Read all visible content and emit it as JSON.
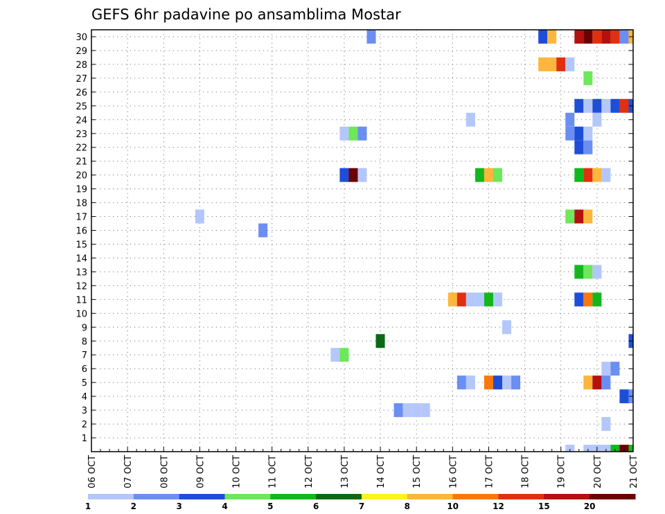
{
  "chart_data": {
    "type": "heatmap",
    "title": "GEFS 6hr padavine po ansamblima Mostar",
    "x_start": "06 OCT 00Z",
    "x_step_hours": 6,
    "x_count": 61,
    "x_tick_labels": [
      "06 OCT",
      "07 OCT",
      "08 OCT",
      "09 OCT",
      "10 OCT",
      "11 OCT",
      "12 OCT",
      "13 OCT",
      "14 OCT",
      "15 OCT",
      "16 OCT",
      "17 OCT",
      "18 OCT",
      "19 OCT",
      "20 OCT",
      "21 OCT"
    ],
    "y_tick_labels": [
      "1",
      "2",
      "3",
      "4",
      "5",
      "6",
      "7",
      "8",
      "9",
      "10",
      "11",
      "12",
      "13",
      "14",
      "15",
      "16",
      "17",
      "18",
      "19",
      "20",
      "21",
      "22",
      "23",
      "24",
      "25",
      "26",
      "27",
      "28",
      "29",
      "30"
    ],
    "y_range": [
      0,
      30
    ],
    "grid": true,
    "colorbar": {
      "colors": [
        "#b4c7fb",
        "#6b8ef2",
        "#1e4ed8",
        "#6ce85a",
        "#13b71c",
        "#0b6a13",
        "#fef41b",
        "#fdb63c",
        "#f9780e",
        "#e0300f",
        "#b41010",
        "#6c0000"
      ],
      "labels": [
        "1",
        "2",
        "3",
        "4",
        "5",
        "6",
        "7",
        "8",
        "10",
        "12",
        "15",
        "20"
      ]
    },
    "cell_value_encoding": "colorbar class index (1-based) of the 6-hour precipitation per member",
    "cells": [
      [
        31,
        30,
        2
      ],
      [
        50,
        30,
        3
      ],
      [
        51,
        30,
        8
      ],
      [
        54,
        30,
        11
      ],
      [
        55,
        30,
        12
      ],
      [
        56,
        30,
        10
      ],
      [
        57,
        30,
        11
      ],
      [
        58,
        30,
        10
      ],
      [
        59,
        30,
        2
      ],
      [
        60,
        30,
        8
      ],
      [
        61,
        30,
        2
      ],
      [
        62,
        30,
        5
      ],
      [
        63,
        30,
        1
      ],
      [
        61,
        29,
        1
      ],
      [
        66,
        29,
        1
      ],
      [
        50,
        28,
        8
      ],
      [
        51,
        28,
        8
      ],
      [
        52,
        28,
        10
      ],
      [
        53,
        28,
        1
      ],
      [
        62,
        28,
        1
      ],
      [
        55,
        27,
        4
      ],
      [
        54,
        25,
        3
      ],
      [
        55,
        25,
        1
      ],
      [
        56,
        25,
        3
      ],
      [
        57,
        25,
        1
      ],
      [
        58,
        25,
        3
      ],
      [
        59,
        25,
        10
      ],
      [
        60,
        25,
        3
      ],
      [
        42,
        24,
        1
      ],
      [
        53,
        24,
        2
      ],
      [
        56,
        24,
        1
      ],
      [
        61,
        24,
        1
      ],
      [
        63,
        24,
        1
      ],
      [
        64,
        24,
        2
      ],
      [
        65,
        24,
        1
      ],
      [
        66,
        24,
        1
      ],
      [
        28,
        23,
        1
      ],
      [
        29,
        23,
        4
      ],
      [
        30,
        23,
        2
      ],
      [
        53,
        23,
        2
      ],
      [
        54,
        23,
        3
      ],
      [
        55,
        23,
        1
      ],
      [
        54,
        22,
        3
      ],
      [
        55,
        22,
        2
      ],
      [
        28,
        20,
        3
      ],
      [
        29,
        20,
        12
      ],
      [
        30,
        20,
        1
      ],
      [
        43,
        20,
        5
      ],
      [
        44,
        20,
        8
      ],
      [
        45,
        20,
        4
      ],
      [
        54,
        20,
        5
      ],
      [
        55,
        20,
        10
      ],
      [
        56,
        20,
        8
      ],
      [
        57,
        20,
        1
      ],
      [
        64,
        19,
        9
      ],
      [
        65,
        19,
        1
      ],
      [
        12,
        17,
        1
      ],
      [
        53,
        17,
        4
      ],
      [
        54,
        17,
        11
      ],
      [
        55,
        17,
        8
      ],
      [
        19,
        16,
        2
      ],
      [
        63,
        16,
        1
      ],
      [
        64,
        16,
        3
      ],
      [
        65,
        16,
        1
      ],
      [
        54,
        13,
        5
      ],
      [
        55,
        13,
        4
      ],
      [
        56,
        13,
        1
      ],
      [
        62,
        12,
        1
      ],
      [
        63,
        12,
        2
      ],
      [
        64,
        12,
        1
      ],
      [
        65,
        12,
        1
      ],
      [
        40,
        11,
        8
      ],
      [
        41,
        11,
        10
      ],
      [
        42,
        11,
        1
      ],
      [
        43,
        11,
        1
      ],
      [
        44,
        11,
        5
      ],
      [
        45,
        11,
        1
      ],
      [
        54,
        11,
        3
      ],
      [
        55,
        11,
        9
      ],
      [
        56,
        11,
        5
      ],
      [
        62,
        11,
        3
      ],
      [
        63,
        11,
        10
      ],
      [
        46,
        9,
        1
      ],
      [
        32,
        8,
        6
      ],
      [
        60,
        8,
        3
      ],
      [
        61,
        8,
        3
      ],
      [
        27,
        7,
        1
      ],
      [
        28,
        7,
        4
      ],
      [
        66,
        7,
        1
      ],
      [
        57,
        6,
        1
      ],
      [
        58,
        6,
        2
      ],
      [
        63,
        6,
        5
      ],
      [
        64,
        6,
        2
      ],
      [
        65,
        6,
        1
      ],
      [
        66,
        6,
        1
      ],
      [
        41,
        5,
        2
      ],
      [
        42,
        5,
        1
      ],
      [
        44,
        5,
        9
      ],
      [
        45,
        5,
        3
      ],
      [
        46,
        5,
        1
      ],
      [
        47,
        5,
        2
      ],
      [
        55,
        5,
        8
      ],
      [
        56,
        5,
        11
      ],
      [
        57,
        5,
        2
      ],
      [
        59,
        4,
        3
      ],
      [
        60,
        4,
        2
      ],
      [
        63,
        4,
        7
      ],
      [
        64,
        4,
        1
      ],
      [
        65,
        4,
        1
      ],
      [
        34,
        3,
        2
      ],
      [
        35,
        3,
        1
      ],
      [
        36,
        3,
        1
      ],
      [
        37,
        3,
        1
      ],
      [
        57,
        2,
        1
      ],
      [
        65,
        1,
        4
      ],
      [
        66,
        1,
        12
      ],
      [
        53,
        0,
        1
      ],
      [
        55,
        0,
        1
      ],
      [
        56,
        0,
        1
      ],
      [
        57,
        0,
        1
      ],
      [
        58,
        0,
        5
      ],
      [
        59,
        0,
        12
      ],
      [
        60,
        0,
        5
      ],
      [
        61,
        0,
        1
      ]
    ]
  }
}
